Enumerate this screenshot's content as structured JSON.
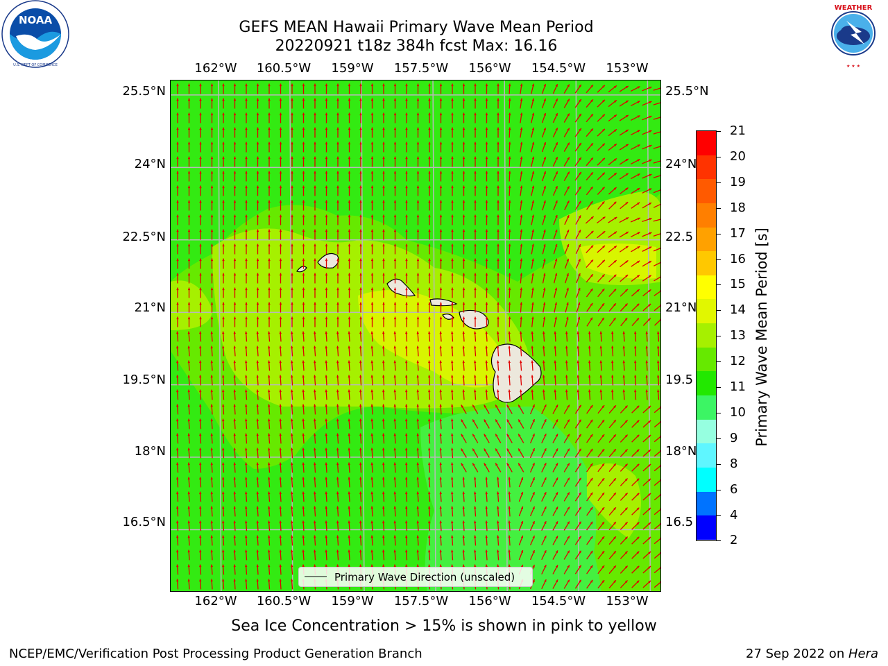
{
  "title": {
    "line1": "GEFS MEAN Hawaii Primary Wave Mean Period",
    "line2": "20220921 t18z 384h fcst   Max: 16.16"
  },
  "logos": {
    "left": {
      "name": "NOAA",
      "ring_text": "NATIONAL OCEANIC AND ATMOSPHERIC ADMINISTRATION",
      "bottom_text": "U.S. DEPARTMENT OF COMMERCE"
    },
    "right": {
      "name": "NATIONAL WEATHER SERVICE"
    }
  },
  "map": {
    "lon_labels": [
      "162°W",
      "160.5°W",
      "159°W",
      "157.5°W",
      "156°W",
      "154.5°W",
      "153°W"
    ],
    "lat_labels_left": [
      "25.5°N",
      "24°N",
      "22.5°N",
      "21°N",
      "19.5°N",
      "18°N",
      "16.5°N"
    ],
    "lat_labels_right": [
      "25.5°N",
      "24°N",
      "22.5",
      "21°N",
      "19.5",
      "18°N",
      "16.5"
    ],
    "lon_range": [
      -163,
      -152.7
    ],
    "lat_range": [
      15.2,
      25.8
    ],
    "legend_label": "Primary Wave Direction (unscaled)",
    "arrow_color": "#e00000",
    "land_color": "#ece8dc",
    "grid_color": "#b8b8b8"
  },
  "colorbar": {
    "label": "Primary Wave Mean Period [s]",
    "ticks": [
      "21",
      "20",
      "19",
      "18",
      "17",
      "16",
      "15",
      "14",
      "13",
      "12",
      "11",
      "10",
      "9",
      "8",
      "6",
      "4",
      "2"
    ],
    "colors": [
      "#ff0000",
      "#ff3300",
      "#ff5a00",
      "#ff7f00",
      "#ffa100",
      "#ffc800",
      "#ffff00",
      "#e1f700",
      "#a6f000",
      "#66e900",
      "#22e800",
      "#3cf564",
      "#96ffe0",
      "#5ff6ff",
      "#00ffff",
      "#0073ff",
      "#0000ff"
    ]
  },
  "field_colors": {
    "p11": "#33ea12",
    "p11b": "#44f040",
    "p12": "#66e900",
    "p13": "#a6f000",
    "p14": "#d8f500"
  },
  "sea_ice_note": "Sea Ice Concentration > 15% is shown in pink to yellow",
  "footer": {
    "left": "NCEP/EMC/Verification Post Processing Product Generation Branch",
    "date": "27 Sep 2022 on ",
    "machine": "Hera"
  }
}
